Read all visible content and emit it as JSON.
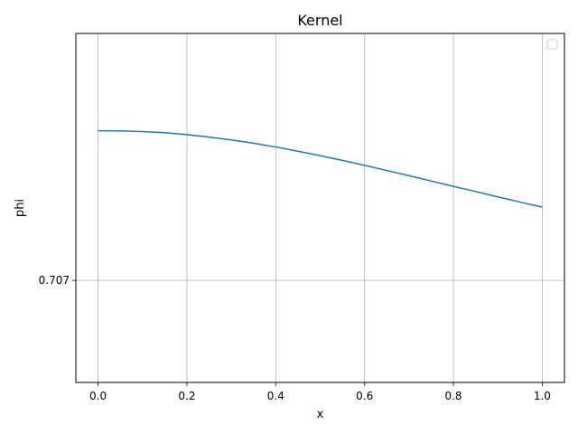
{
  "chart_data": {
    "type": "line",
    "title": "Kernel",
    "xlabel": "x",
    "ylabel": "phi",
    "xlim": [
      -0.05,
      1.05
    ],
    "ylim": [
      0.6537,
      0.8363
    ],
    "x_ticks": [
      0.0,
      0.2,
      0.4,
      0.6,
      0.8,
      1.0
    ],
    "x_tick_labels": [
      "0.0",
      "0.2",
      "0.4",
      "0.6",
      "0.8",
      "1.0"
    ],
    "y_ticks": [
      0.7071
    ],
    "y_tick_labels": [
      "0.707"
    ],
    "grid": true,
    "legend": {
      "location": "upper right",
      "entries": []
    },
    "series": [
      {
        "color": "#1f77b4",
        "x": [
          0.0,
          0.05,
          0.1,
          0.15,
          0.2,
          0.25,
          0.3,
          0.35,
          0.4,
          0.45,
          0.5,
          0.55,
          0.6,
          0.65,
          0.7,
          0.75,
          0.8,
          0.85,
          0.9,
          0.95,
          1.0
        ],
        "y": [
          0.7854,
          0.7853,
          0.785,
          0.7844,
          0.7834,
          0.7821,
          0.7806,
          0.7789,
          0.7769,
          0.7747,
          0.7724,
          0.7699,
          0.7673,
          0.7646,
          0.7619,
          0.7591,
          0.7563,
          0.7536,
          0.7508,
          0.7481,
          0.7454
        ]
      }
    ]
  }
}
